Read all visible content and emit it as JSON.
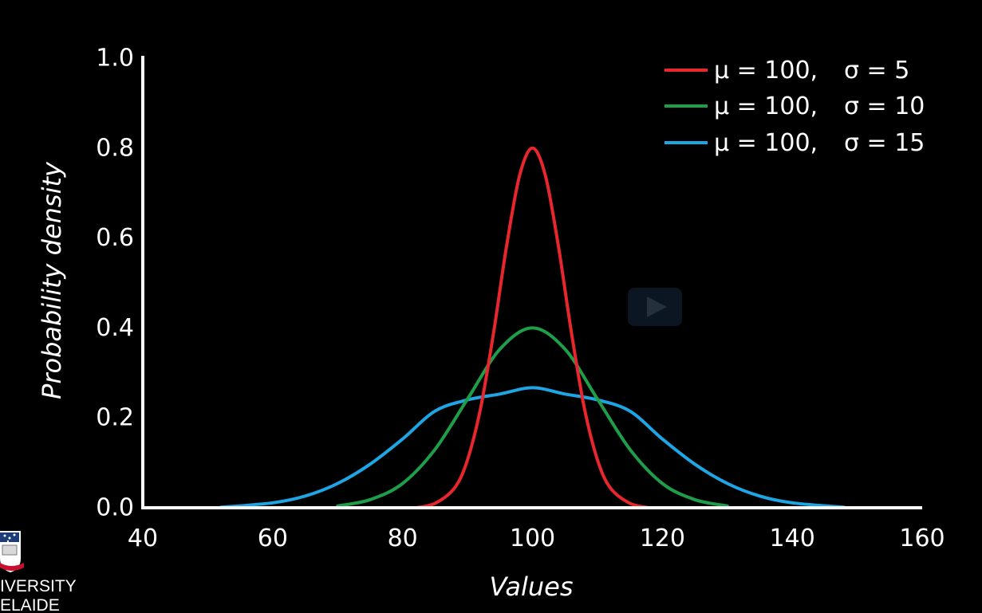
{
  "chart_data": {
    "type": "line",
    "xlabel": "Values",
    "ylabel": "Probability density",
    "xlim": [
      40,
      160
    ],
    "ylim": [
      0,
      1.0
    ],
    "xticks": [
      "40",
      "60",
      "80",
      "100",
      "120",
      "140",
      "160"
    ],
    "yticks": [
      "0.0",
      "0.2",
      "0.4",
      "0.6",
      "0.8",
      "1.0"
    ],
    "grid": false,
    "legend_position": "top-right",
    "series": [
      {
        "name_mu": "μ = 100,",
        "name_sigma": "σ = 5",
        "color": "#e8262d",
        "x": [
          82,
          85,
          88,
          90,
          92,
          94,
          96,
          98,
          100,
          102,
          104,
          106,
          108,
          110,
          112,
          115,
          118
        ],
        "y": [
          0.0,
          0.01,
          0.044,
          0.107,
          0.221,
          0.389,
          0.581,
          0.738,
          0.8,
          0.738,
          0.581,
          0.389,
          0.221,
          0.107,
          0.044,
          0.01,
          0.0
        ]
      },
      {
        "name_mu": "μ = 100,",
        "name_sigma": "σ = 10",
        "color": "#1f9e4a",
        "x": [
          70,
          75,
          80,
          85,
          90,
          95,
          100,
          105,
          110,
          115,
          120,
          125,
          130
        ],
        "y": [
          0.004,
          0.018,
          0.054,
          0.13,
          0.242,
          0.353,
          0.4,
          0.353,
          0.242,
          0.13,
          0.054,
          0.018,
          0.004
        ]
      },
      {
        "name_mu": "μ = 100,",
        "name_sigma": "σ = 15",
        "color": "#1ea5e3",
        "x": [
          52,
          60,
          65,
          70,
          75,
          80,
          85,
          90,
          95,
          100,
          105,
          110,
          115,
          120,
          125,
          130,
          135,
          140,
          148
        ],
        "y": [
          0.001,
          0.011,
          0.026,
          0.054,
          0.097,
          0.153,
          0.215,
          0.24,
          0.253,
          0.267,
          0.253,
          0.24,
          0.215,
          0.153,
          0.097,
          0.054,
          0.026,
          0.011,
          0.001
        ]
      }
    ]
  },
  "logo": {
    "line1": "IVERSITY",
    "line2": "ELAIDE"
  },
  "colors": {
    "background": "#000000",
    "axis": "#ffffff",
    "baseline": "#ffffff",
    "play_button": "#0c1622"
  },
  "overlay": {
    "icon": "play-icon"
  }
}
